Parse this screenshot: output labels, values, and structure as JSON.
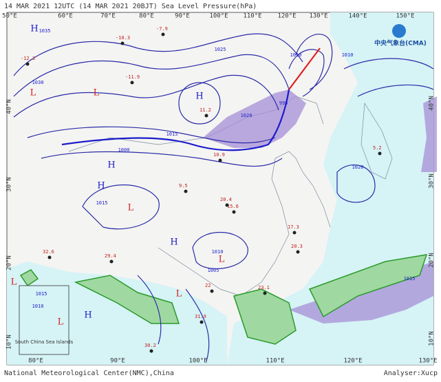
{
  "header": {
    "title": "14 MAR 2021 12UTC (14 MAR 2021 20BJT) Sea Level Pressure(hPa)"
  },
  "logo": "中央气象台(CMA)",
  "axes": {
    "top": [
      "50°E",
      "60°E",
      "70°E",
      "80°E",
      "90°E",
      "100°E",
      "110°E",
      "120°E",
      "130°E",
      "140°E",
      "150°E"
    ],
    "bottom": [
      "80°E",
      "90°E",
      "100°E",
      "110°E",
      "120°E",
      "130°E"
    ],
    "left": [
      "40°N",
      "30°N",
      "20°N",
      "10°N"
    ],
    "right": [
      "40°N",
      "30°N",
      "20°N",
      "10°N"
    ]
  },
  "centers": [
    "H",
    "L",
    "L",
    "H",
    "H",
    "H",
    "L",
    "H",
    "L",
    "L",
    "H",
    "L",
    "L"
  ],
  "isobar_labels": [
    "1035",
    "1030",
    "1025",
    "1020",
    "1015",
    "1010",
    "1000",
    "995",
    "1005",
    "1010",
    "1015",
    "1015",
    "1020",
    "1010",
    "1015",
    "1010"
  ],
  "stations": [
    "-12.3",
    "-11.9",
    "-10.3",
    "-7.9",
    "11.2",
    "10.9",
    "9.5",
    "15.6",
    "20.4",
    "23.1",
    "22",
    "31.9",
    "30.2",
    "32.6",
    "29.4",
    "17.3",
    "20.3",
    "5.2"
  ],
  "inset": {
    "label": "South China Sea Islands"
  },
  "footer": {
    "source": "National Meteorological Center(NMC),China",
    "analyst": "Analyser:Xucp"
  }
}
